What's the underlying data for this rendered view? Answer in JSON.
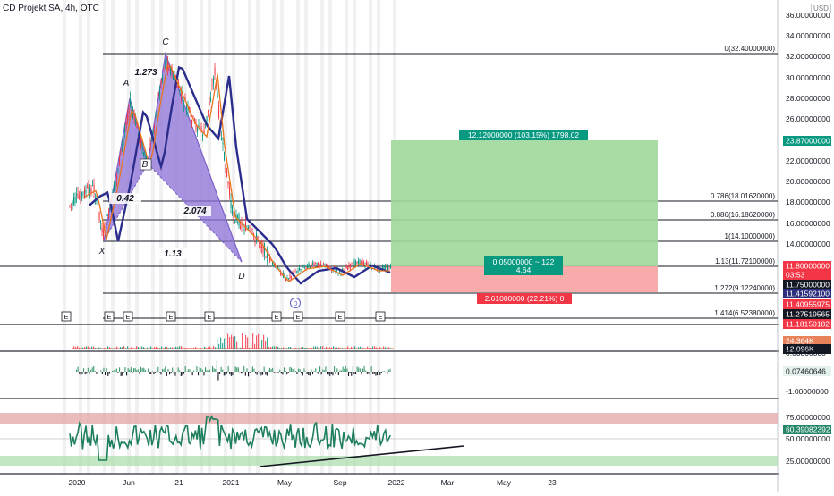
{
  "header": {
    "title": "CD Projekt SA, 4h, OTC",
    "currency": "USD"
  },
  "price_axis": {
    "labels": [
      "36.00000000",
      "34.00000000",
      "32.00000000",
      "30.00000000",
      "28.00000000",
      "26.00000000",
      "24.00000000",
      "22.00000000",
      "20.00000000",
      "18.00000000",
      "16.00000000",
      "14.00000000",
      "12.00000000"
    ],
    "markers": [
      {
        "text": "23.87000000",
        "color": "#089981"
      },
      {
        "text": "11.80000000",
        "color": "#f23645"
      },
      {
        "text": "03:53",
        "color": "#f23645"
      },
      {
        "text": "11.75000000",
        "color": "#131722"
      },
      {
        "text": "11.41592100",
        "color": "#2a2e7c"
      },
      {
        "text": "11.40955975",
        "color": "#f23645"
      },
      {
        "text": "11.27519565",
        "color": "#131722"
      },
      {
        "text": "11.18150182",
        "color": "#f23645"
      }
    ]
  },
  "volume_axis": {
    "markers": [
      {
        "text": "24.364K",
        "color": "#e8825a"
      },
      {
        "text": "12.096K",
        "color": "#131722"
      }
    ]
  },
  "osc_axis": {
    "labels": [
      "0.00000000",
      "-1.00000000"
    ],
    "markers": [
      {
        "text": "0.07460646",
        "color": "#e4f1ec"
      }
    ]
  },
  "rsi_axis": {
    "labels": [
      "75.00000000",
      "50.00000000",
      "25.00000000"
    ],
    "markers": [
      {
        "text": "60.39082392",
        "color": "#26866a"
      }
    ]
  },
  "time_axis": [
    "2020",
    "Jun",
    "21",
    "2021",
    "May",
    "Sep",
    "2022",
    "Mar",
    "May",
    "23"
  ],
  "fib_levels": [
    {
      "label": "0(32.40000000)"
    },
    {
      "label": "0.786(18.01620000)"
    },
    {
      "label": "0.886(16.18620000)"
    },
    {
      "label": "1(14.10000000)"
    },
    {
      "label": "1.13(11.72100000)"
    },
    {
      "label": "1.272(9.12240000)"
    },
    {
      "label": "1.414(6.52380000)"
    }
  ],
  "pattern": {
    "points": [
      "X",
      "A",
      "B",
      "C",
      "D"
    ],
    "ratios": [
      "1.273",
      "0.42",
      "2.074",
      "1.13"
    ]
  },
  "position": {
    "target": "12.12000000 (103.15%) 1798.02",
    "entry_line1": "0.05000000 ~ 122",
    "entry_line2": "4.64",
    "stop": "2.61000000 (22.21%) 0"
  },
  "earnings_marker": "E",
  "dividend_marker": "D"
}
